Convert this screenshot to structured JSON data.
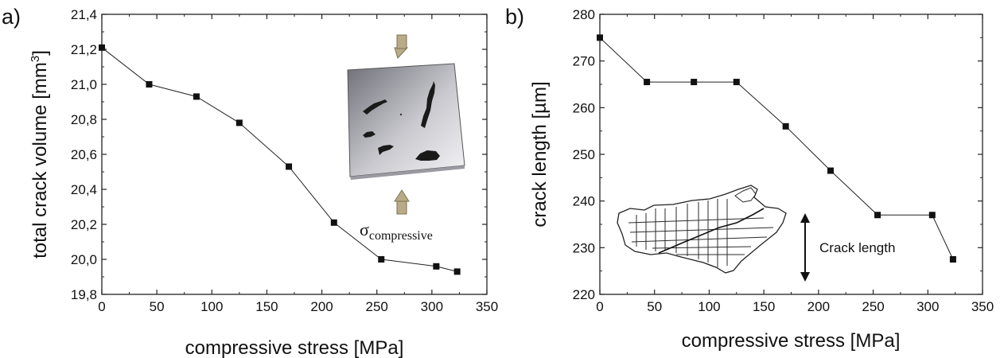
{
  "chart_data": [
    {
      "type": "line",
      "panel_label": "a)",
      "xlabel": "compressive stress [MPa]",
      "ylabel_main": "total crack volume [mm",
      "ylabel_sup": "3",
      "ylabel_end": "]",
      "xlim": [
        0,
        350
      ],
      "ylim": [
        19.8,
        21.4
      ],
      "xticks": [
        "0",
        "50",
        "100",
        "150",
        "200",
        "250",
        "300",
        "350"
      ],
      "yticks": [
        "19,8",
        "20,0",
        "20,2",
        "20,4",
        "20,6",
        "20,8",
        "21,0",
        "21,2",
        "21,4"
      ],
      "series": [
        {
          "x": [
            0,
            43,
            86,
            125,
            170,
            211,
            254,
            304,
            323
          ],
          "y": [
            21.21,
            21.0,
            20.93,
            20.78,
            20.53,
            20.21,
            20.0,
            19.96,
            19.93
          ]
        }
      ],
      "inset_sigma": "σ",
      "inset_sigma_sub": "compressive"
    },
    {
      "type": "line",
      "panel_label": "b)",
      "xlabel": "compressive stress [MPa]",
      "ylabel": "crack length [µm]",
      "xlim": [
        0,
        350
      ],
      "ylim": [
        220,
        280
      ],
      "xticks": [
        "0",
        "50",
        "100",
        "150",
        "200",
        "250",
        "300",
        "350"
      ],
      "yticks": [
        "220",
        "230",
        "240",
        "250",
        "260",
        "270",
        "280"
      ],
      "series": [
        {
          "x": [
            0,
            43,
            86,
            125,
            170,
            211,
            254,
            304,
            323
          ],
          "y": [
            275,
            265.5,
            265.5,
            265.5,
            256,
            246.5,
            237,
            237,
            227.5
          ]
        }
      ],
      "inset_note": "Crack length"
    }
  ]
}
